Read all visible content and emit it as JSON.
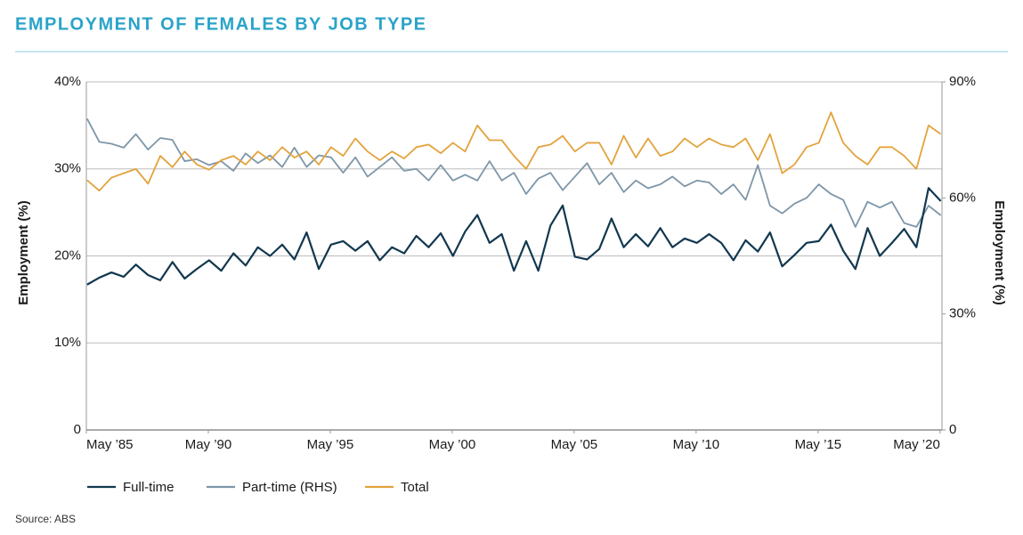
{
  "chart_data": {
    "type": "line",
    "title": "EMPLOYMENT OF FEMALES BY JOB TYPE",
    "ylabel": "Employment (%)",
    "y2label": "Employment (%)",
    "source": "Source: ABS",
    "x": [
      1985.4,
      1985.9,
      1986.4,
      1986.9,
      1987.4,
      1987.9,
      1988.4,
      1988.9,
      1989.4,
      1989.9,
      1990.4,
      1990.9,
      1991.4,
      1991.9,
      1992.4,
      1992.9,
      1993.4,
      1993.9,
      1994.4,
      1994.9,
      1995.4,
      1995.9,
      1996.4,
      1996.9,
      1997.4,
      1997.9,
      1998.4,
      1998.9,
      1999.4,
      1999.9,
      2000.4,
      2000.9,
      2001.4,
      2001.9,
      2002.4,
      2002.9,
      2003.4,
      2003.9,
      2004.4,
      2004.9,
      2005.4,
      2005.9,
      2006.4,
      2006.9,
      2007.4,
      2007.9,
      2008.4,
      2008.9,
      2009.4,
      2009.9,
      2010.4,
      2010.9,
      2011.4,
      2011.9,
      2012.4,
      2012.9,
      2013.4,
      2013.9,
      2014.4,
      2014.9,
      2015.4,
      2015.9,
      2016.4,
      2016.9,
      2017.4,
      2017.9,
      2018.4,
      2018.9,
      2019.4,
      2019.9,
      2020.4
    ],
    "xlim": [
      1985.37,
      2020.45
    ],
    "xticks": [
      {
        "value": 1985.37,
        "label": "May ’85"
      },
      {
        "value": 1990.37,
        "label": "May ’90"
      },
      {
        "value": 1995.37,
        "label": "May ’95"
      },
      {
        "value": 2000.37,
        "label": "May ’00"
      },
      {
        "value": 2005.37,
        "label": "May ’05"
      },
      {
        "value": 2010.37,
        "label": "May ’10"
      },
      {
        "value": 2015.37,
        "label": "May ’15"
      },
      {
        "value": 2020.37,
        "label": "May ’20"
      }
    ],
    "ylim": [
      0,
      40
    ],
    "yticks": [
      0,
      {
        "value": 10,
        "label": "10%"
      },
      {
        "value": 20,
        "label": "20%"
      },
      {
        "value": 30,
        "label": "30%"
      },
      {
        "value": 40,
        "label": "40%"
      }
    ],
    "y2lim": [
      0,
      90
    ],
    "y2ticks": [
      0,
      {
        "value": 30,
        "label": "30%"
      },
      {
        "value": 60,
        "label": "60%"
      },
      {
        "value": 90,
        "label": "90%"
      }
    ],
    "grid": true,
    "legend": "bottom",
    "series": [
      {
        "name": "Full-time",
        "color": "#12384f",
        "values": [
          16.7,
          17.5,
          18.1,
          17.6,
          19.0,
          17.8,
          17.2,
          19.3,
          17.4,
          18.5,
          19.5,
          18.3,
          20.3,
          18.9,
          21.0,
          20.0,
          21.3,
          19.6,
          22.7,
          18.5,
          21.3,
          21.7,
          20.6,
          21.7,
          19.5,
          21.0,
          20.3,
          22.3,
          21.0,
          22.6,
          20.0,
          22.8,
          24.7,
          21.5,
          22.5,
          18.3,
          21.7,
          18.3,
          23.5,
          25.8,
          19.9,
          19.6,
          20.8,
          24.3,
          21.0,
          22.5,
          21.1,
          23.2,
          21.0,
          22.0,
          21.5,
          22.5,
          21.5,
          19.5,
          21.8,
          20.5,
          22.7,
          18.8,
          20.1,
          21.5,
          21.7,
          23.6,
          20.6,
          18.5,
          23.2,
          20.0,
          21.5,
          23.1,
          21.0,
          27.8,
          26.3
        ]
      },
      {
        "name": "Part-time (RHS)",
        "color": "#7d96a8",
        "axis": "y2",
        "values": [
          80.5,
          74.5,
          74.0,
          73.0,
          76.5,
          72.5,
          75.5,
          75.0,
          69.5,
          70.0,
          68.5,
          69.5,
          67.0,
          71.5,
          69.0,
          71.0,
          68.0,
          73.0,
          68.0,
          71.0,
          70.5,
          66.5,
          70.5,
          65.5,
          68.0,
          70.5,
          67.0,
          67.5,
          64.5,
          68.5,
          64.5,
          66.0,
          64.5,
          69.5,
          64.5,
          66.5,
          61.0,
          65.0,
          66.5,
          62.0,
          65.5,
          69.0,
          63.5,
          66.5,
          61.5,
          64.5,
          62.5,
          63.5,
          65.5,
          63.0,
          64.5,
          64.0,
          61.0,
          63.5,
          59.5,
          68.5,
          58.0,
          56.0,
          58.5,
          60.0,
          63.5,
          61.0,
          59.5,
          52.5,
          59.0,
          57.5,
          59.0,
          53.5,
          52.5,
          58.0,
          55.5
        ]
      },
      {
        "name": "Total",
        "color": "#e3a33d",
        "values": [
          28.7,
          27.5,
          29.0,
          29.5,
          30.0,
          28.3,
          31.5,
          30.2,
          32.0,
          30.5,
          29.9,
          31.0,
          31.5,
          30.5,
          32.0,
          31.0,
          32.5,
          31.3,
          32.0,
          30.5,
          32.5,
          31.5,
          33.5,
          32.0,
          31.0,
          32.0,
          31.2,
          32.5,
          32.8,
          31.8,
          33.0,
          32.0,
          35.0,
          33.3,
          33.3,
          31.5,
          30.0,
          32.5,
          32.8,
          33.8,
          32.0,
          33.0,
          33.0,
          30.5,
          33.8,
          31.3,
          33.5,
          31.5,
          32.0,
          33.5,
          32.5,
          33.5,
          32.8,
          32.5,
          33.5,
          31.0,
          34.0,
          29.5,
          30.5,
          32.5,
          33.0,
          36.5,
          33.0,
          31.5,
          30.5,
          32.5,
          32.5,
          31.5,
          30.0,
          35.0,
          34.0
        ]
      }
    ]
  }
}
